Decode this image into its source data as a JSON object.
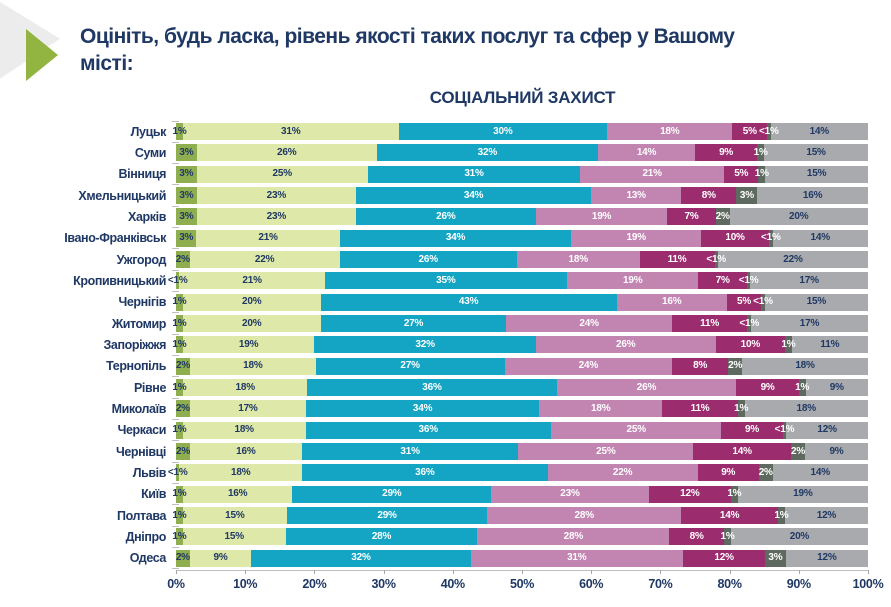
{
  "header": {
    "title": "Оцініть, будь ласка, рівень якості таких послуг та сфер у Вашому місті:"
  },
  "chart_data": {
    "type": "bar",
    "stacked": true,
    "orientation": "horizontal",
    "title": "СОЦІАЛЬНИЙ ЗАХИСТ",
    "xlim": [
      0,
      100
    ],
    "x_ticks": [
      "0%",
      "10%",
      "20%",
      "30%",
      "40%",
      "50%",
      "60%",
      "70%",
      "80%",
      "90%",
      "100%"
    ],
    "legend": "none (no legend shown in image)",
    "segment_colors": [
      "#8FAE50",
      "#DDE8A9",
      "#13A5C3",
      "#C285B2",
      "#9B2D6F",
      "#5E6A60",
      "#A8AAAD"
    ],
    "rows": [
      {
        "city": "Луцьк",
        "values": [
          "1%",
          "31%",
          "30%",
          "18%",
          "5%",
          "<1%",
          "14%"
        ]
      },
      {
        "city": "Суми",
        "values": [
          "3%",
          "26%",
          "32%",
          "14%",
          "9%",
          "1%",
          "15%"
        ]
      },
      {
        "city": "Вінниця",
        "values": [
          "3%",
          "25%",
          "31%",
          "21%",
          "5%",
          "1%",
          "15%"
        ]
      },
      {
        "city": "Хмельницький",
        "values": [
          "3%",
          "23%",
          "34%",
          "13%",
          "8%",
          "3%",
          "16%"
        ]
      },
      {
        "city": "Харків",
        "values": [
          "3%",
          "23%",
          "26%",
          "19%",
          "7%",
          "2%",
          "20%"
        ]
      },
      {
        "city": "Івано-Франківськ",
        "values": [
          "3%",
          "21%",
          "34%",
          "19%",
          "10%",
          "<1%",
          "14%"
        ]
      },
      {
        "city": "Ужгород",
        "values": [
          "2%",
          "22%",
          "26%",
          "18%",
          "11%",
          "<1%",
          "22%"
        ]
      },
      {
        "city": "Кропивницький",
        "values": [
          "<1%",
          "21%",
          "35%",
          "19%",
          "7%",
          "<1%",
          "17%"
        ]
      },
      {
        "city": "Чернігів",
        "values": [
          "1%",
          "20%",
          "43%",
          "16%",
          "5%",
          "<1%",
          "15%"
        ]
      },
      {
        "city": "Житомир",
        "values": [
          "1%",
          "20%",
          "27%",
          "24%",
          "11%",
          "<1%",
          "17%"
        ]
      },
      {
        "city": "Запоріжжя",
        "values": [
          "1%",
          "19%",
          "32%",
          "26%",
          "10%",
          "1%",
          "11%"
        ]
      },
      {
        "city": "Тернопіль",
        "values": [
          "2%",
          "18%",
          "27%",
          "24%",
          "8%",
          "2%",
          "18%"
        ]
      },
      {
        "city": "Рівне",
        "values": [
          "1%",
          "18%",
          "36%",
          "26%",
          "9%",
          "1%",
          "9%"
        ]
      },
      {
        "city": "Миколаїв",
        "values": [
          "2%",
          "17%",
          "34%",
          "18%",
          "11%",
          "1%",
          "18%"
        ]
      },
      {
        "city": "Черкаси",
        "values": [
          "1%",
          "18%",
          "36%",
          "25%",
          "9%",
          "<1%",
          "12%"
        ]
      },
      {
        "city": "Чернівці",
        "values": [
          "2%",
          "16%",
          "31%",
          "25%",
          "14%",
          "2%",
          "9%"
        ]
      },
      {
        "city": "Львів",
        "values": [
          "<1%",
          "18%",
          "36%",
          "22%",
          "9%",
          "2%",
          "14%"
        ]
      },
      {
        "city": "Київ",
        "values": [
          "1%",
          "16%",
          "29%",
          "23%",
          "12%",
          "1%",
          "19%"
        ]
      },
      {
        "city": "Полтава",
        "values": [
          "1%",
          "15%",
          "29%",
          "28%",
          "14%",
          "1%",
          "12%"
        ]
      },
      {
        "city": "Дніпро",
        "values": [
          "1%",
          "15%",
          "28%",
          "28%",
          "8%",
          "1%",
          "20%"
        ]
      },
      {
        "city": "Одеса",
        "values": [
          "2%",
          "9%",
          "32%",
          "31%",
          "12%",
          "3%",
          "12%"
        ]
      }
    ],
    "label_text_navy_on_segments": [
      0,
      1,
      6
    ],
    "label_text_white_on_segments": [
      2,
      3,
      4,
      5
    ]
  },
  "colors": {
    "accent_green": "#92B440",
    "chevron_gray": "#ECECEC",
    "text_navy": "#1F3864",
    "axis_gray": "#BFBFBF",
    "label_white": "#FFFFFF"
  }
}
